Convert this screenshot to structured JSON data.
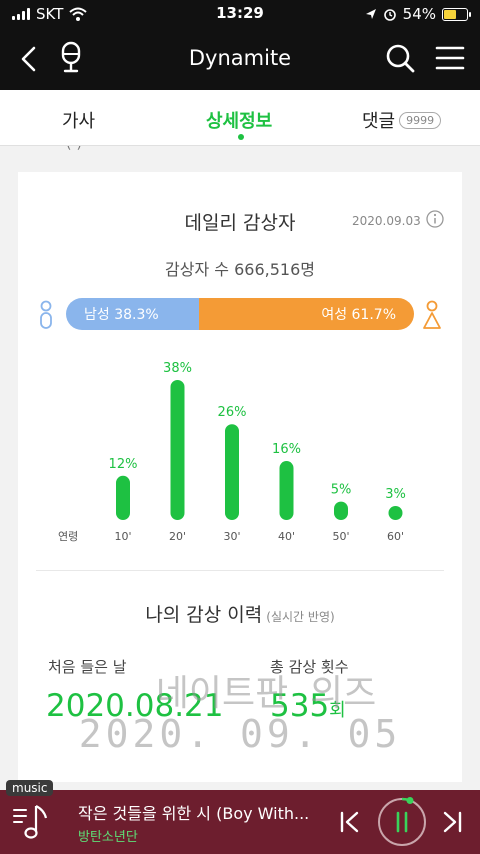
{
  "status_bar": {
    "carrier": "SKT",
    "time": "13:29",
    "battery_percent": "54%",
    "battery_level": 0.54
  },
  "header": {
    "title": "Dynamite",
    "icons": [
      "back-arrow-icon",
      "mic-icon",
      "search-icon",
      "menu-icon"
    ]
  },
  "tabs": {
    "lyrics": "가사",
    "detail": "상세정보",
    "comments": "댓글",
    "comments_badge": "9999"
  },
  "daily": {
    "title": "데일리 감상자",
    "date": "2020.09.03",
    "listeners": "감상자 수 666,516명",
    "male_label": "남성 38.3%",
    "female_label": "여성 61.7%",
    "male_ratio": 0.383,
    "colors": {
      "male": "#8ab5ec",
      "female": "#f49b36",
      "accent": "#1ec142"
    }
  },
  "chart_data": {
    "type": "bar",
    "xlabel": "연령",
    "categories": [
      "10'",
      "20'",
      "30'",
      "40'",
      "50'",
      "60'"
    ],
    "values": [
      12,
      38,
      26,
      16,
      5,
      3
    ],
    "value_labels": [
      "12%",
      "38%",
      "26%",
      "16%",
      "5%",
      "3%"
    ]
  },
  "history": {
    "title": "나의 감상 이력",
    "subtitle": "(실시간 반영)",
    "first_label": "처음 들은 날",
    "total_label": "총 감상 횟수",
    "first_date": "2020.08.21",
    "total_count": "535",
    "total_unit": "회"
  },
  "watermark": {
    "line1": "네이트판 의즈",
    "line2": "2020. 09. 05"
  },
  "player": {
    "tag": "music",
    "title": "작은 것들을 위한 시 (Boy With...",
    "artist": "방탄소년단",
    "icons": [
      "playlist-icon",
      "prev-icon",
      "pause-icon",
      "next-icon"
    ]
  }
}
